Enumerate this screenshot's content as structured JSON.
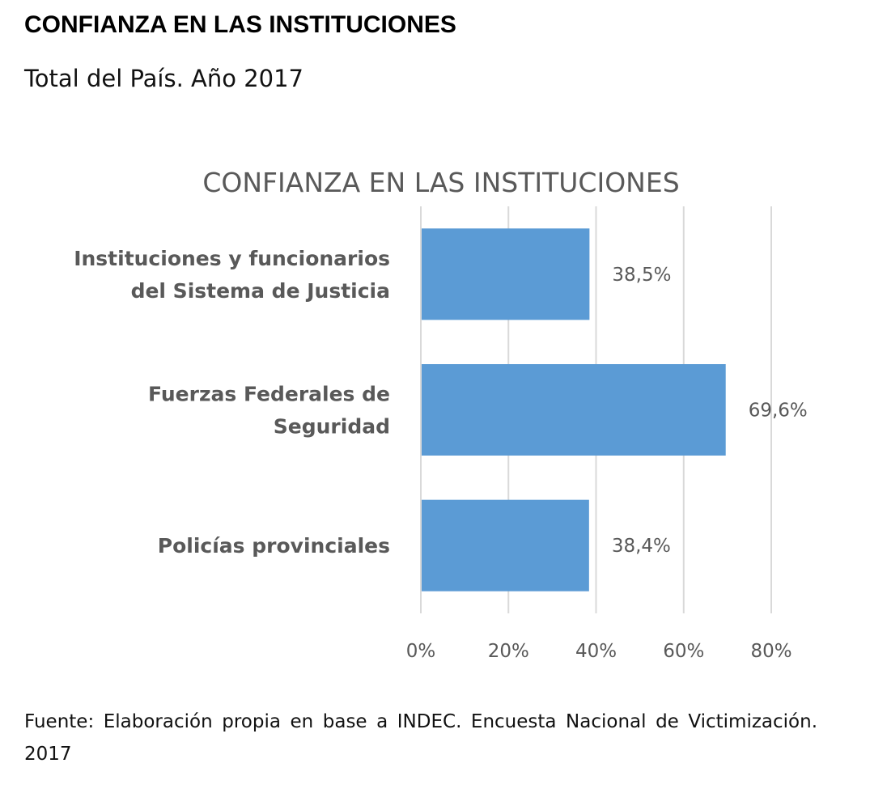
{
  "page": {
    "title": "CONFIANZA EN LAS INSTITUCIONES",
    "subtitle": "Total del País. Año 2017",
    "source": "Fuente: Elaboración propia en base a INDEC. Encuesta Nacional de Victimización. 2017"
  },
  "chart_data": {
    "type": "bar",
    "orientation": "horizontal",
    "title": "CONFIANZA EN LAS INSTITUCIONES",
    "categories": [
      [
        "Instituciones y funcionarios",
        "del Sistema de Justicia"
      ],
      [
        "Fuerzas Federales de",
        "Seguridad"
      ],
      [
        "Policías provinciales"
      ]
    ],
    "values": [
      38.5,
      69.6,
      38.4
    ],
    "data_labels": [
      "38,5%",
      "69,6%",
      "38,4%"
    ],
    "xlim": [
      0,
      80
    ],
    "xticks": [
      0,
      20,
      40,
      60,
      80
    ],
    "xtick_labels": [
      "0%",
      "20%",
      "40%",
      "60%",
      "80%"
    ],
    "grid": true,
    "colors": {
      "bar": "#5b9bd5",
      "grid": "#d9d9d9",
      "title": "#595959",
      "labels": "#595959"
    }
  }
}
